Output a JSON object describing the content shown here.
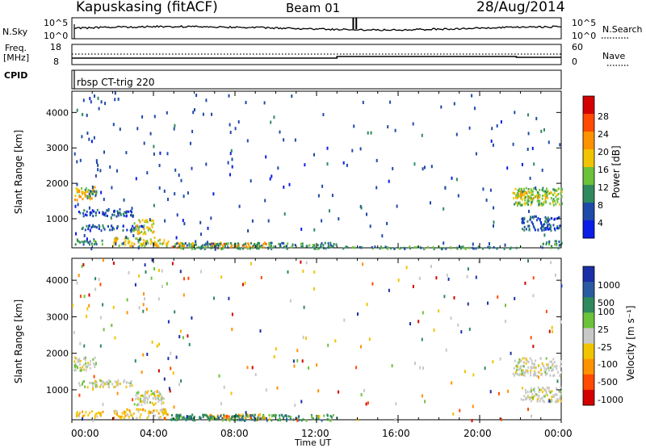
{
  "header": {
    "station": "Kapuskasing (fitACF)",
    "beam": "Beam 01",
    "date": "28/Aug/2014"
  },
  "noise_panel": {
    "left_label": "N.Sky",
    "left_ticks": [
      "10^5",
      "10^0"
    ],
    "right_ticks": [
      "10^5",
      "10^0"
    ],
    "right_label": "N.Search"
  },
  "freq_panel": {
    "left_label_1": "Freq.",
    "left_label_2": "[MHz]",
    "left_ticks": [
      "18",
      "8"
    ],
    "right_ticks": [
      "60",
      "0"
    ],
    "right_label": "Nave"
  },
  "cpid": {
    "label": "CPID",
    "value": "rbsp CT-trig 220"
  },
  "power_panel": {
    "ylabel": "Slant Range [km]",
    "colorbar_label": "Power [dB]",
    "colorbar_ticks": [
      "28",
      "24",
      "20",
      "16",
      "12",
      "8",
      "4"
    ],
    "colorbar_colors": [
      "#d40000",
      "#ff4a00",
      "#ff9200",
      "#f0c400",
      "#6cc23a",
      "#2e8a5c",
      "#1e4aa8",
      "#0a1ee6"
    ]
  },
  "velocity_panel": {
    "ylabel": "Slant Range [km]",
    "colorbar_label": "Velocity [m s⁻¹]",
    "colorbar_ticks": [
      "1000",
      "500",
      "100",
      "25",
      "-25",
      "-100",
      "-500",
      "-1000"
    ],
    "colorbar_colors": [
      "#1a2ea8",
      "#2a5aa0",
      "#2e8a5c",
      "#6cc23a",
      "#c8c8c8",
      "#f0c400",
      "#ff9200",
      "#ff4a00",
      "#d40000"
    ]
  },
  "x_axis": {
    "label": "Time UT",
    "ticks": [
      "00:00",
      "04:00",
      "08:00",
      "12:00",
      "16:00",
      "20:00",
      "00:00"
    ]
  },
  "chart_data": [
    {
      "type": "heatmap",
      "title": "Power",
      "xlabel": "Time UT",
      "ylabel": "Slant Range [km]",
      "xlim": [
        "00:00",
        "24:00"
      ],
      "ylim": [
        180,
        4600
      ],
      "y_ticks": [
        1000,
        2000,
        3000,
        4000
      ],
      "value_label": "Power [dB]",
      "value_range": [
        0,
        32
      ],
      "regions": [
        {
          "t": [
            0.05,
            1.1
          ],
          "range": [
            1550,
            1950
          ],
          "value": 14
        },
        {
          "t": [
            0.6,
            1.2
          ],
          "range": [
            1600,
            1850
          ],
          "value": 8
        },
        {
          "t": [
            0.3,
            3.0
          ],
          "range": [
            1100,
            1300
          ],
          "value": 4
        },
        {
          "t": [
            0.3,
            3.5
          ],
          "range": [
            700,
            850
          ],
          "value": 4
        },
        {
          "t": [
            0.1,
            1.5
          ],
          "range": [
            300,
            450
          ],
          "value": 6
        },
        {
          "t": [
            2.0,
            4.7
          ],
          "range": [
            250,
            500
          ],
          "value": 14
        },
        {
          "t": [
            3.0,
            4.0
          ],
          "range": [
            600,
            1000
          ],
          "value": 14
        },
        {
          "t": [
            4.8,
            6.0
          ],
          "range": [
            200,
            350
          ],
          "value": 20
        },
        {
          "t": [
            6.5,
            9.5
          ],
          "range": [
            200,
            350
          ],
          "value": 18
        },
        {
          "t": [
            5.0,
            13.0
          ],
          "range": [
            180,
            350
          ],
          "value": 8
        },
        {
          "t": [
            13.0,
            22.0
          ],
          "range": [
            180,
            250
          ],
          "value": 6
        },
        {
          "t": [
            21.6,
            24.0
          ],
          "range": [
            1400,
            1900
          ],
          "value": 10
        },
        {
          "t": [
            21.8,
            23.5
          ],
          "range": [
            1600,
            1800
          ],
          "value": 14
        },
        {
          "t": [
            22.0,
            24.0
          ],
          "range": [
            700,
            1100
          ],
          "value": 4
        },
        {
          "t": [
            23.0,
            24.0
          ],
          "range": [
            200,
            400
          ],
          "value": 8
        }
      ]
    },
    {
      "type": "heatmap",
      "title": "Velocity",
      "xlabel": "Time UT",
      "ylabel": "Slant Range [km]",
      "xlim": [
        "00:00",
        "24:00"
      ],
      "ylim": [
        180,
        4600
      ],
      "y_ticks": [
        1000,
        2000,
        3000,
        4000
      ],
      "value_label": "Velocity [m s-1]",
      "value_range": [
        -1000,
        1000
      ],
      "regions": [
        {
          "t": [
            0.05,
            1.1
          ],
          "range": [
            1550,
            1950
          ],
          "value": 0
        },
        {
          "t": [
            0.3,
            3.0
          ],
          "range": [
            1100,
            1300
          ],
          "value": 0
        },
        {
          "t": [
            0.1,
            1.5
          ],
          "range": [
            300,
            450
          ],
          "value": -80
        },
        {
          "t": [
            2.0,
            4.7
          ],
          "range": [
            250,
            500
          ],
          "value": -60
        },
        {
          "t": [
            3.0,
            4.5
          ],
          "range": [
            600,
            1000
          ],
          "value": 0
        },
        {
          "t": [
            4.8,
            6.0
          ],
          "range": [
            200,
            350
          ],
          "value": 80
        },
        {
          "t": [
            6.5,
            9.5
          ],
          "range": [
            200,
            350
          ],
          "value": -150
        },
        {
          "t": [
            5.0,
            13.0
          ],
          "range": [
            180,
            350
          ],
          "value": 60
        },
        {
          "t": [
            21.6,
            24.0
          ],
          "range": [
            1400,
            1900
          ],
          "value": 0
        },
        {
          "t": [
            22.0,
            24.0
          ],
          "range": [
            700,
            1100
          ],
          "value": 0
        }
      ]
    }
  ]
}
